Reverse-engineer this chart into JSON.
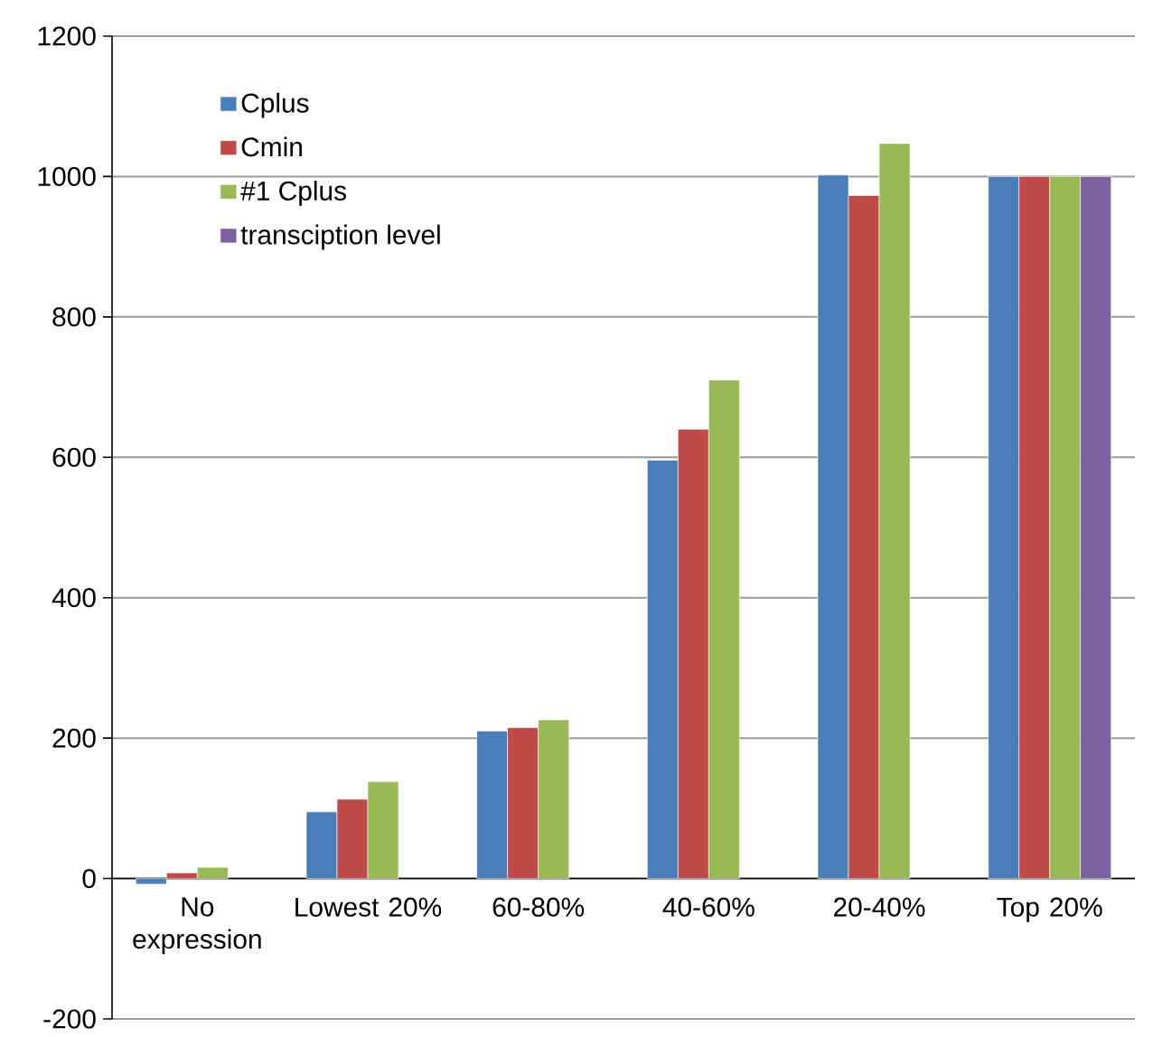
{
  "chart_data": {
    "type": "bar",
    "categories": [
      "No expression",
      "Lowest 20%",
      "60-80%",
      "40-60%",
      "20-40%",
      "Top 20%"
    ],
    "series": [
      {
        "name": "Cplus",
        "color": "#4a7ebb",
        "values": [
          -8,
          95,
          210,
          596,
          1002,
          1000
        ]
      },
      {
        "name": "Cmin",
        "color": "#be4b48",
        "values": [
          8,
          113,
          215,
          640,
          973,
          1000
        ]
      },
      {
        "name": "#1 Cplus",
        "color": "#98b954",
        "values": [
          16,
          138,
          226,
          710,
          1047,
          1000
        ]
      },
      {
        "name": "transciption level",
        "color": "#7d60a0",
        "values": [
          null,
          null,
          null,
          null,
          null,
          1000
        ]
      }
    ],
    "ylim": [
      -200,
      1200
    ],
    "yticks": [
      -200,
      0,
      200,
      400,
      600,
      800,
      1000,
      1200
    ],
    "grid": "y",
    "legend": "top left"
  }
}
